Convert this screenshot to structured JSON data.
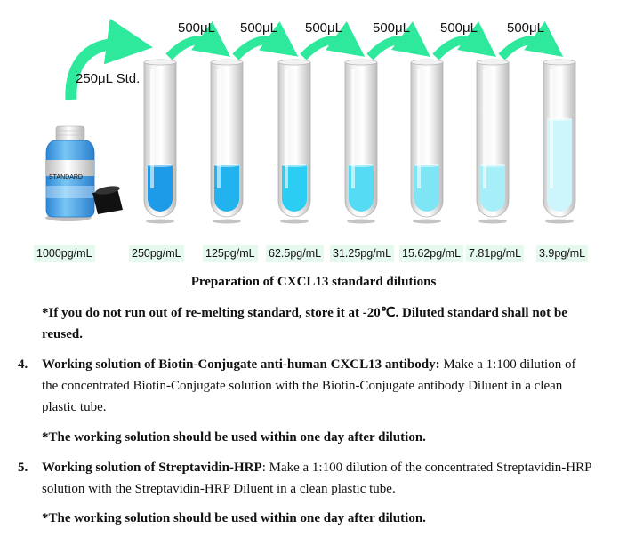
{
  "figure": {
    "transfer_volumes": [
      "500μL",
      "500μL",
      "500μL",
      "500μL",
      "500μL",
      "500μL"
    ],
    "standard_transfer": "250μL Std.",
    "bottle_label": "STANDARD",
    "concentrations": [
      "1000pg/mL",
      "250pg/mL",
      "125pg/mL",
      "62.5pg/mL",
      "31.25pg/mL",
      "15.62pg/mL",
      "7.81pg/mL",
      "3.9pg/mL"
    ],
    "tube_liquid_colors": [
      "#1e9be8",
      "#22b2ee",
      "#2ccdf2",
      "#55dcf4",
      "#7ee5f5",
      "#a6eef8",
      "#ccf6fb"
    ],
    "arrow_color": "#2ee89c"
  },
  "caption": "Preparation of CXCL13 standard dilutions",
  "note1": "*If you do not run out of re-melting standard, store it at -20℃. Diluted standard shall not be reused.",
  "items": [
    {
      "num": "4.",
      "title": "Working solution of Biotin-Conjugate anti-human CXCL13 antibody:",
      "body": " Make a 1:100 dilution of the concentrated Biotin-Conjugate solution with the Biotin-Conjugate antibody Diluent in a clean plastic tube.",
      "note": "*The working solution should be used within one day after dilution."
    },
    {
      "num": "5.",
      "title": "Working solution of Streptavidin-HRP",
      "body": ": Make a 1:100 dilution of the concentrated Streptavidin-HRP solution with the Streptavidin-HRP Diluent in a clean plastic tube.",
      "note": "*The working solution should be used within one day after dilution."
    }
  ]
}
